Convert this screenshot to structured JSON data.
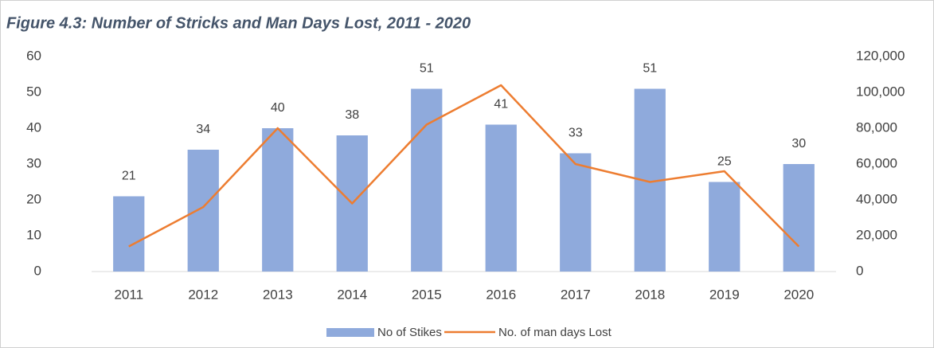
{
  "chart_data": {
    "type": "bar_line",
    "title": "Figure 4.3:  Number of Stricks and Man Days Lost,  2011 - 2020",
    "categories": [
      "2011",
      "2012",
      "2013",
      "2014",
      "2015",
      "2016",
      "2017",
      "2018",
      "2019",
      "2020"
    ],
    "series": [
      {
        "name": "No of Stikes",
        "color": "#8faadc",
        "type": "bar",
        "values": [
          21,
          34,
          40,
          38,
          51,
          41,
          33,
          51,
          25,
          30
        ]
      },
      {
        "name": "No. of man days Lost",
        "color": "#ed7d31",
        "type": "line",
        "axis": "y2",
        "values": [
          14000,
          36000,
          80000,
          38000,
          82000,
          104000,
          60000,
          50000,
          56000,
          14000
        ]
      }
    ],
    "ylim": [
      0,
      60
    ],
    "yticks": [
      0,
      10,
      20,
      30,
      40,
      50,
      60
    ],
    "y2lim": [
      0,
      120000
    ],
    "y2ticks": [
      0,
      {
        "value": 20000,
        "label": "20,000"
      },
      {
        "value": 40000,
        "label": "40,000"
      },
      {
        "value": 60000,
        "label": "60,000"
      },
      {
        "value": 80000,
        "label": "80,000"
      },
      {
        "value": 100000,
        "label": "100,000"
      },
      {
        "value": 120000,
        "label": "120,000"
      }
    ],
    "legend": "bottom"
  }
}
